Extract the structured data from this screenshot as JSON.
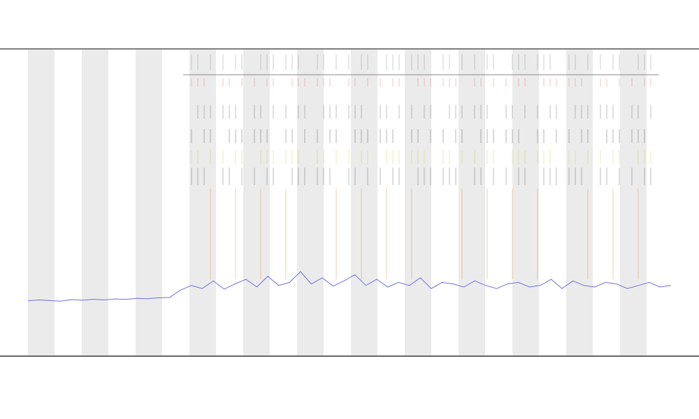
{
  "chart_data": {
    "type": "line",
    "series": [
      {
        "color": "#6f6fe0",
        "values": [
          18.0,
          18.3,
          18.1,
          17.9,
          18.4,
          18.2,
          18.5,
          18.3,
          18.6,
          18.5,
          18.8,
          18.7,
          19.0,
          19.1,
          21.5,
          23.0,
          22.0,
          24.5,
          21.8,
          23.5,
          25.0,
          22.5,
          26.0,
          23.0,
          24.0,
          27.5,
          23.5,
          25.5,
          22.8,
          24.5,
          26.5,
          23.0,
          25.0,
          22.5,
          24.0,
          23.0,
          25.5,
          22.0,
          24.0,
          23.5,
          22.5,
          24.5,
          23.0,
          22.0,
          23.5,
          24.0,
          22.5,
          23.0,
          25.0,
          22.0,
          24.5,
          23.0,
          22.5,
          24.0,
          23.5,
          22.0,
          23.0,
          24.0,
          22.5,
          23.0
        ]
      }
    ],
    "ylim": [
      0,
      100
    ]
  }
}
